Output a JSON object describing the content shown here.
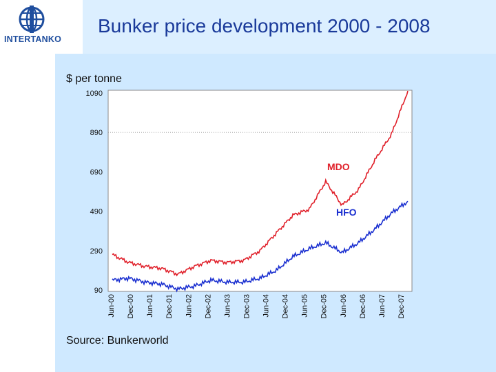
{
  "header": {
    "logo_text": "INTERTANKO",
    "title": "Bunker price development  2000 - 2008"
  },
  "footer": {
    "source": "Source: Bunkerworld"
  },
  "colors": {
    "mdo": "#e0202a",
    "hfo": "#1a2fd0",
    "title": "#1a3a9a",
    "band": "#dcefff",
    "content": "#cfe9ff"
  },
  "chart_data": {
    "type": "line",
    "title": "",
    "xlabel": "",
    "ylabel": "$ per tonne",
    "ylim": [
      90,
      1090
    ],
    "yticks": [
      90,
      290,
      490,
      690,
      890,
      1090
    ],
    "gridlines": [
      890
    ],
    "x_tick_labels": [
      "Jun-00",
      "Dec-00",
      "Jun-01",
      "Dec-01",
      "Jun-02",
      "Dec-02",
      "Jun-03",
      "Dec-03",
      "Jun-04",
      "Dec-04",
      "Jun-05",
      "Dec-05",
      "Jun-06",
      "Dec-06",
      "Jun-07",
      "Dec-07"
    ],
    "x_points": [
      "Jan-00",
      "Jun-00",
      "Dec-00",
      "Jun-01",
      "Dec-01",
      "Jun-02",
      "Dec-02",
      "Jun-03",
      "Dec-03",
      "Jun-04",
      "Dec-04",
      "Jun-05",
      "Dec-05",
      "Jun-06",
      "Dec-06",
      "Jun-07",
      "Dec-07",
      "Mar-08",
      "May-08"
    ],
    "series": [
      {
        "name": "MDO",
        "values": [
          270,
          230,
          210,
          200,
          170,
          210,
          240,
          230,
          240,
          290,
          380,
          470,
          500,
          640,
          520,
          600,
          750,
          880,
          1100
        ]
      },
      {
        "name": "HFO",
        "values": [
          140,
          150,
          130,
          120,
          95,
          110,
          140,
          130,
          130,
          150,
          190,
          260,
          300,
          330,
          280,
          330,
          400,
          480,
          540
        ]
      }
    ],
    "annotations": [
      {
        "text": "MDO",
        "series": "MDO"
      },
      {
        "text": "HFO",
        "series": "HFO"
      }
    ]
  }
}
